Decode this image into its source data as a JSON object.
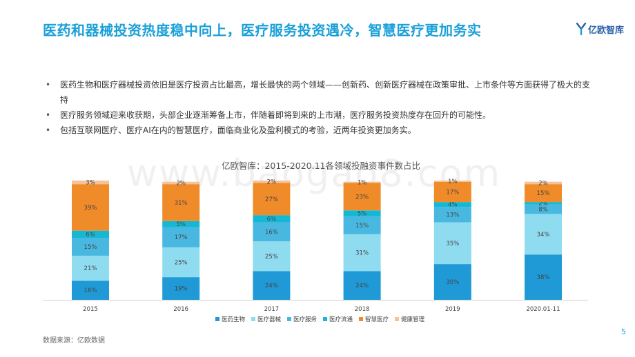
{
  "slide": {
    "title": "医药和器械投资热度稳中向上，医疗服务投资遇冷，智慧医疗更加务实",
    "logo_text": "亿欧智库",
    "bullets": [
      "医药生物和医疗器械投资依旧是医疗投资占比最高，增长最快的两个领域——创新药、创新医疗器械在政策审批、上市条件等方面获得了极大的支持",
      "医疗服务领域迎来收获期，头部企业逐渐筹备上市，伴随着即将到来的上市潮，医疗服务投资热度存在回升的可能性。",
      "包括互联网医疗、医疗AI在内的智慧医疗，面临商业化及盈利模式的考验，近两年投资更加务实。"
    ],
    "source": "数据来源：亿欧数据",
    "page_number": "5",
    "watermark": "www.baogao8.com"
  },
  "chart_data": {
    "type": "bar",
    "stacked": true,
    "title": "亿欧智库：2015-2020.11各领域投融资事件数占比",
    "categories": [
      "2015",
      "2016",
      "2017",
      "2018",
      "2019",
      "2020.01-11"
    ],
    "series": [
      {
        "name": "医药生物",
        "color": "#1f9ad6",
        "values": [
          16,
          19,
          24,
          24,
          30,
          38
        ]
      },
      {
        "name": "医疗器械",
        "color": "#8fdcf0",
        "values": [
          21,
          25,
          25,
          31,
          35,
          34
        ]
      },
      {
        "name": "医疗服务",
        "color": "#49b8e0",
        "values": [
          15,
          17,
          16,
          15,
          13,
          8
        ]
      },
      {
        "name": "医疗流通",
        "color": "#14b8d4",
        "values": [
          6,
          5,
          6,
          5,
          4,
          2
        ]
      },
      {
        "name": "智慧医疗",
        "color": "#f08b2a",
        "values": [
          39,
          31,
          27,
          23,
          17,
          15
        ]
      },
      {
        "name": "健康管理",
        "color": "#f5c29a",
        "values": [
          3,
          2,
          2,
          1,
          1,
          2
        ]
      }
    ],
    "value_suffix": "%",
    "ylim": [
      0,
      100
    ],
    "grid": false,
    "legend_position": "bottom"
  }
}
